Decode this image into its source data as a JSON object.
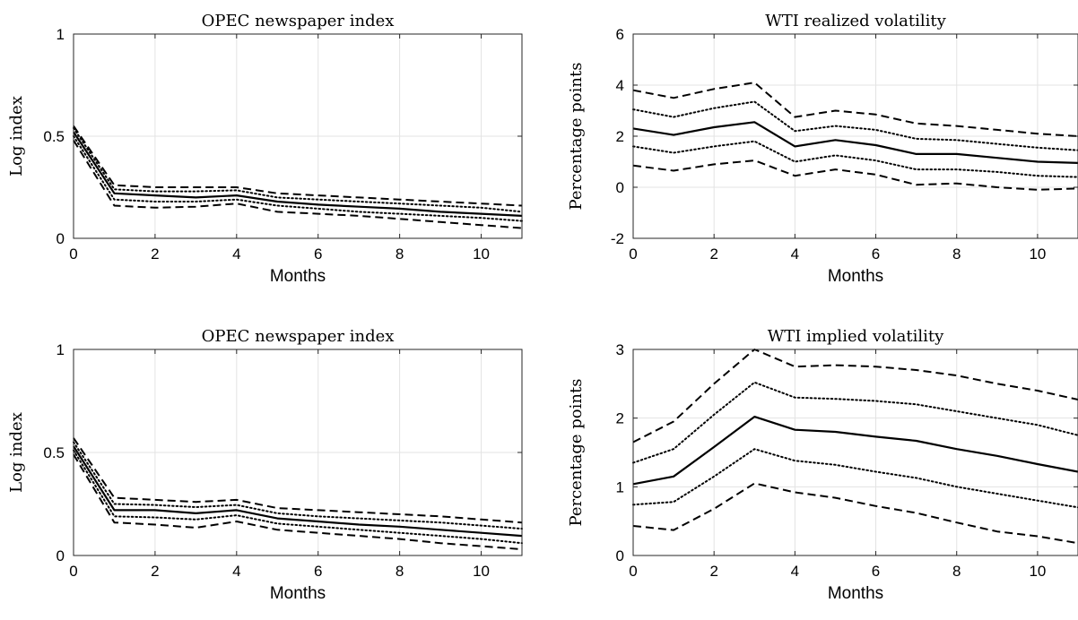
{
  "chart_data": [
    {
      "type": "line",
      "title": "OPEC newspaper index",
      "xlabel": "Months",
      "ylabel": "Log index",
      "xlim": [
        0,
        11
      ],
      "ylim": [
        0,
        1
      ],
      "xticks": [
        "0",
        "2",
        "4",
        "6",
        "8",
        "10"
      ],
      "yticks": [
        "0",
        "0.5",
        "1"
      ],
      "grid": true,
      "x": [
        0,
        1,
        2,
        3,
        4,
        5,
        6,
        7,
        8,
        9,
        10,
        11
      ],
      "series": [
        {
          "style": "dashed",
          "values": [
            0.55,
            0.26,
            0.25,
            0.25,
            0.25,
            0.22,
            0.21,
            0.2,
            0.19,
            0.18,
            0.17,
            0.16
          ]
        },
        {
          "style": "dotted",
          "values": [
            0.54,
            0.24,
            0.23,
            0.23,
            0.235,
            0.2,
            0.19,
            0.18,
            0.17,
            0.16,
            0.15,
            0.13
          ]
        },
        {
          "style": "solid",
          "values": [
            0.52,
            0.22,
            0.21,
            0.2,
            0.21,
            0.18,
            0.165,
            0.155,
            0.145,
            0.13,
            0.12,
            0.11
          ]
        },
        {
          "style": "dotted",
          "values": [
            0.5,
            0.19,
            0.18,
            0.18,
            0.19,
            0.16,
            0.145,
            0.13,
            0.12,
            0.11,
            0.1,
            0.085
          ]
        },
        {
          "style": "dashed",
          "values": [
            0.48,
            0.16,
            0.15,
            0.155,
            0.17,
            0.13,
            0.12,
            0.11,
            0.095,
            0.08,
            0.065,
            0.05
          ]
        }
      ]
    },
    {
      "type": "line",
      "title": "WTI realized volatility",
      "xlabel": "Months",
      "ylabel": "Percentage points",
      "xlim": [
        0,
        11
      ],
      "ylim": [
        -2,
        6
      ],
      "xticks": [
        "0",
        "2",
        "4",
        "6",
        "8",
        "10"
      ],
      "yticks": [
        "-2",
        "0",
        "2",
        "4",
        "6"
      ],
      "grid": true,
      "x": [
        0,
        1,
        2,
        3,
        4,
        5,
        6,
        7,
        8,
        9,
        10,
        11
      ],
      "series": [
        {
          "style": "dashed",
          "values": [
            3.8,
            3.5,
            3.85,
            4.1,
            2.75,
            3.0,
            2.85,
            2.5,
            2.4,
            2.25,
            2.1,
            2.0
          ]
        },
        {
          "style": "dotted",
          "values": [
            3.05,
            2.75,
            3.1,
            3.35,
            2.2,
            2.4,
            2.25,
            1.9,
            1.85,
            1.7,
            1.55,
            1.45
          ]
        },
        {
          "style": "solid",
          "values": [
            2.3,
            2.05,
            2.35,
            2.55,
            1.6,
            1.85,
            1.65,
            1.3,
            1.3,
            1.15,
            1.0,
            0.95
          ]
        },
        {
          "style": "dotted",
          "values": [
            1.6,
            1.35,
            1.6,
            1.8,
            1.0,
            1.25,
            1.05,
            0.7,
            0.7,
            0.6,
            0.45,
            0.4
          ]
        },
        {
          "style": "dashed",
          "values": [
            0.85,
            0.65,
            0.9,
            1.05,
            0.45,
            0.7,
            0.5,
            0.1,
            0.15,
            0.0,
            -0.1,
            -0.05
          ]
        }
      ]
    },
    {
      "type": "line",
      "title": "OPEC newspaper index",
      "xlabel": "Months",
      "ylabel": "Log index",
      "xlim": [
        0,
        11
      ],
      "ylim": [
        0,
        1
      ],
      "xticks": [
        "0",
        "2",
        "4",
        "6",
        "8",
        "10"
      ],
      "yticks": [
        "0",
        "0.5",
        "1"
      ],
      "grid": true,
      "x": [
        0,
        1,
        2,
        3,
        4,
        5,
        6,
        7,
        8,
        9,
        10,
        11
      ],
      "series": [
        {
          "style": "dashed",
          "values": [
            0.57,
            0.28,
            0.27,
            0.26,
            0.27,
            0.23,
            0.22,
            0.21,
            0.2,
            0.19,
            0.175,
            0.16
          ]
        },
        {
          "style": "dotted",
          "values": [
            0.55,
            0.25,
            0.245,
            0.235,
            0.245,
            0.205,
            0.19,
            0.18,
            0.17,
            0.16,
            0.145,
            0.13
          ]
        },
        {
          "style": "solid",
          "values": [
            0.53,
            0.22,
            0.22,
            0.205,
            0.22,
            0.18,
            0.165,
            0.15,
            0.14,
            0.125,
            0.11,
            0.095
          ]
        },
        {
          "style": "dotted",
          "values": [
            0.51,
            0.19,
            0.185,
            0.175,
            0.195,
            0.155,
            0.14,
            0.125,
            0.11,
            0.095,
            0.08,
            0.06
          ]
        },
        {
          "style": "dashed",
          "values": [
            0.49,
            0.16,
            0.15,
            0.135,
            0.165,
            0.125,
            0.11,
            0.095,
            0.08,
            0.06,
            0.045,
            0.03
          ]
        }
      ]
    },
    {
      "type": "line",
      "title": "WTI implied volatility",
      "xlabel": "Months",
      "ylabel": "Percentage points",
      "xlim": [
        0,
        11
      ],
      "ylim": [
        0,
        3
      ],
      "xticks": [
        "0",
        "2",
        "4",
        "6",
        "8",
        "10"
      ],
      "yticks": [
        "0",
        "1",
        "2",
        "3"
      ],
      "grid": true,
      "x": [
        0,
        1,
        2,
        3,
        4,
        5,
        6,
        7,
        8,
        9,
        10,
        11
      ],
      "series": [
        {
          "style": "dashed",
          "values": [
            1.65,
            1.95,
            2.5,
            3.0,
            2.75,
            2.77,
            2.75,
            2.7,
            2.62,
            2.5,
            2.4,
            2.27
          ]
        },
        {
          "style": "dotted",
          "values": [
            1.35,
            1.55,
            2.05,
            2.52,
            2.3,
            2.28,
            2.25,
            2.2,
            2.1,
            2.0,
            1.9,
            1.75
          ]
        },
        {
          "style": "solid",
          "values": [
            1.04,
            1.15,
            1.58,
            2.02,
            1.83,
            1.8,
            1.73,
            1.67,
            1.55,
            1.45,
            1.33,
            1.22
          ]
        },
        {
          "style": "dotted",
          "values": [
            0.74,
            0.78,
            1.15,
            1.55,
            1.38,
            1.32,
            1.22,
            1.13,
            1.0,
            0.9,
            0.8,
            0.7
          ]
        },
        {
          "style": "dashed",
          "values": [
            0.43,
            0.37,
            0.68,
            1.05,
            0.92,
            0.84,
            0.72,
            0.62,
            0.48,
            0.35,
            0.28,
            0.18
          ]
        }
      ]
    }
  ]
}
